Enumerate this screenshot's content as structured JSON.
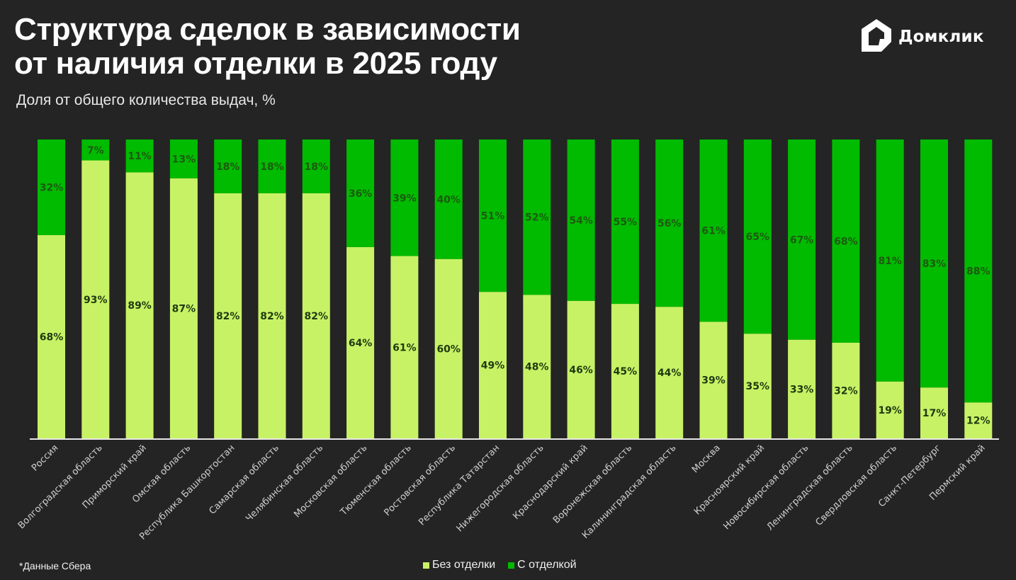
{
  "header": {
    "title_line1": "Структура сделок в зависимости",
    "title_line2": "от наличия отделки в 2025 году",
    "subtitle": "Доля от общего количества выдач, %",
    "logo_text": "Домклик",
    "logo_icon": "house-icon"
  },
  "footer": {
    "footnote": "*Данные Сбера"
  },
  "colors": {
    "background": "#242424",
    "without_finish": "#c8f266",
    "with_finish": "#00bb00",
    "label_text": "#1f3a10",
    "axis": "#e6e6e6",
    "category_text": "#cfcfcf"
  },
  "chart_data": {
    "type": "bar",
    "stacked": true,
    "title": "Структура сделок в зависимости от наличия отделки в 2025 году",
    "subtitle": "Доля от общего количества выдач, %",
    "xlabel": "",
    "ylabel": "",
    "ylim": [
      0,
      100
    ],
    "grid": false,
    "legend_position": "bottom",
    "categories": [
      "Россия",
      "Волгоградская область",
      "Приморский край",
      "Омская область",
      "Республика Башкортостан",
      "Самарская область",
      "Челябинская область",
      "Московская область",
      "Тюменская область",
      "Ростовская область",
      "Республика Татарстан",
      "Нижегородская область",
      "Краснодарский край",
      "Воронежская область",
      "Калининградская область",
      "Москва",
      "Красноярский край",
      "Новосибирская область",
      "Ленинградская область",
      "Свердловская область",
      "Санкт-Петербург",
      "Пермский край"
    ],
    "series": [
      {
        "name": "Без отделки",
        "color": "#c8f266",
        "values": [
          68,
          93,
          89,
          87,
          82,
          82,
          82,
          64,
          61,
          60,
          49,
          48,
          46,
          45,
          44,
          39,
          35,
          33,
          32,
          19,
          17,
          12
        ]
      },
      {
        "name": "С отделкой",
        "color": "#00bb00",
        "values": [
          32,
          7,
          11,
          13,
          18,
          18,
          18,
          36,
          39,
          40,
          51,
          52,
          54,
          55,
          56,
          61,
          65,
          67,
          68,
          81,
          83,
          88
        ]
      }
    ],
    "value_suffix": "%"
  }
}
